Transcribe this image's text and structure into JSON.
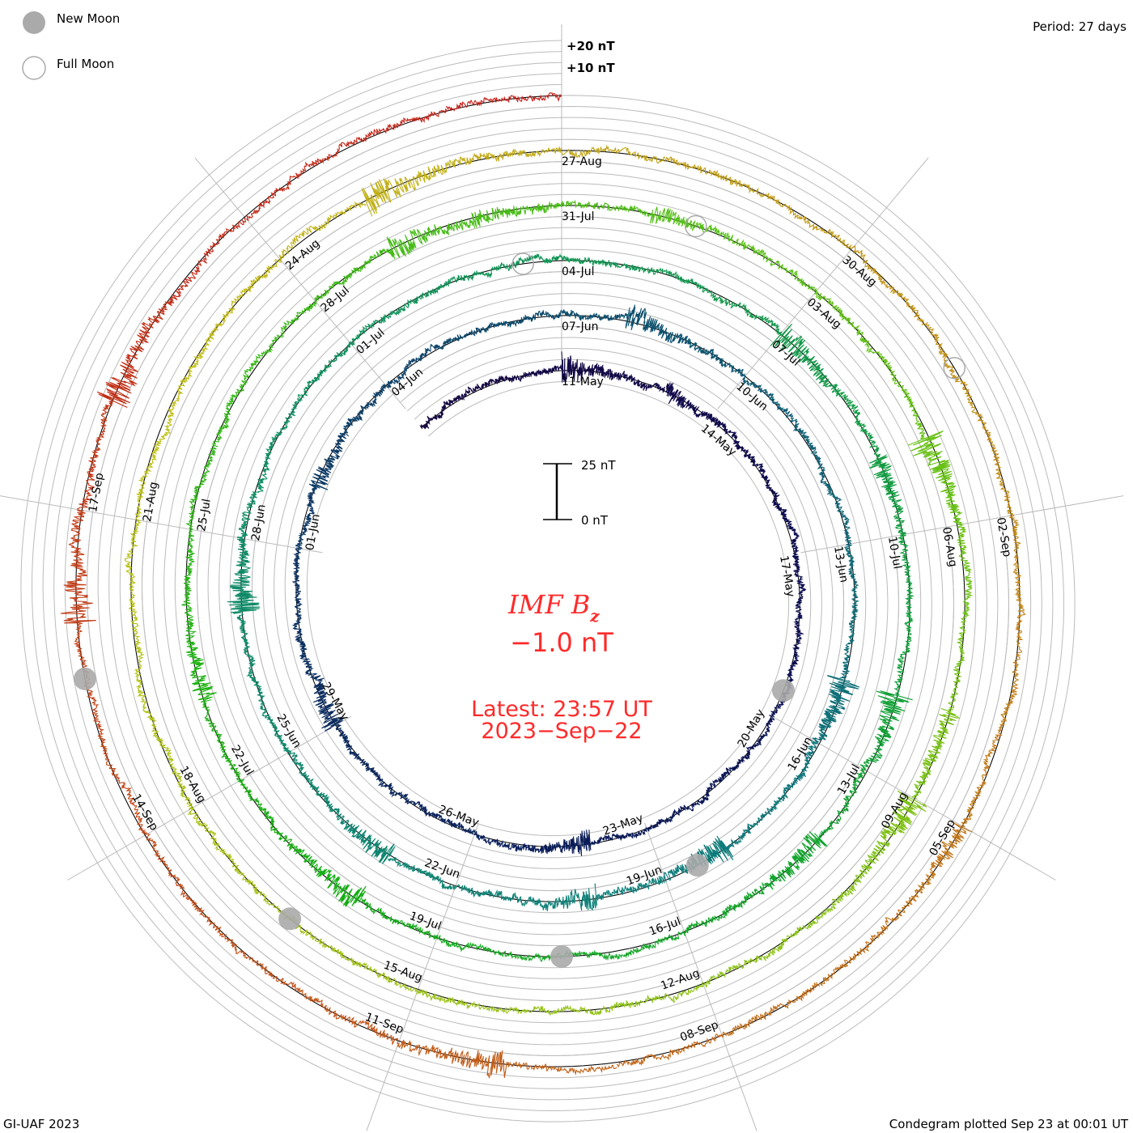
{
  "legend": {
    "new_moon": "New Moon",
    "full_moon": "Full Moon"
  },
  "period_label": "Period: 27 days",
  "footer_left": "GI-UAF 2023",
  "footer_right": "Condegram plotted Sep 23 at 00:01 UT",
  "outer_scale": {
    "plus20": "+20 nT",
    "plus10": "+10 nT"
  },
  "scale_bar": {
    "top": "25 nT",
    "bottom": "0 nT"
  },
  "title": {
    "main": "IMF B",
    "sub": "z",
    "value": "−1.0 nT",
    "latest": "Latest: 23:57 UT",
    "date": "2023−Sep−22"
  },
  "colors": {
    "moon": "#aaaaaa",
    "grid": "#bbbbbb",
    "baseline": "#000000",
    "title": "#ff2a2a"
  },
  "chart_data": {
    "type": "line",
    "layout": "condegram-spiral",
    "series": [
      {
        "name": "IMF Bz",
        "unit": "nT"
      }
    ],
    "period_days": 27,
    "start": "2023-05-08",
    "end": "2023-09-23",
    "latest_value": -1.0,
    "typical_range": [
      -15,
      15
    ],
    "date_labels": [
      "11-May",
      "14-May",
      "17-May",
      "20-May",
      "23-May",
      "26-May",
      "29-May",
      "01-Jun",
      "04-Jun",
      "07-Jun",
      "10-Jun",
      "13-Jun",
      "16-Jun",
      "19-Jun",
      "22-Jun",
      "25-Jun",
      "28-Jun",
      "01-Jul",
      "04-Jul",
      "07-Jul",
      "10-Jul",
      "13-Jul",
      "16-Jul",
      "19-Jul",
      "22-Jul",
      "25-Jul",
      "28-Jul",
      "31-Jul",
      "03-Aug",
      "06-Aug",
      "09-Aug",
      "12-Aug",
      "15-Aug",
      "18-Aug",
      "21-Aug",
      "24-Aug",
      "27-Aug",
      "30-Aug",
      "02-Sep",
      "05-Sep",
      "08-Sep",
      "11-Sep",
      "14-Sep",
      "17-Sep"
    ],
    "new_moons": [
      "2023-05-19",
      "2023-06-18",
      "2023-07-17",
      "2023-08-16",
      "2023-09-15"
    ],
    "full_moons": [
      "2023-07-03",
      "2023-08-01",
      "2023-08-31"
    ]
  }
}
